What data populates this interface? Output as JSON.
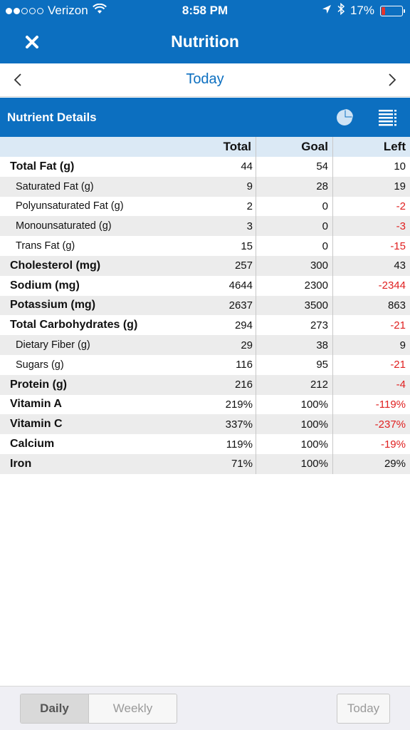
{
  "status_bar": {
    "carrier": "Verizon",
    "time": "8:58 PM",
    "battery": "17%",
    "battery_level": 0.17
  },
  "nav": {
    "title": "Nutrition"
  },
  "date_bar": {
    "label": "Today"
  },
  "section": {
    "title": "Nutrient Details"
  },
  "table": {
    "headers": {
      "total": "Total",
      "goal": "Goal",
      "left": "Left"
    },
    "rows": [
      {
        "name": "Total Fat (g)",
        "total": "44",
        "goal": "54",
        "left": "10"
      },
      {
        "name": "Saturated Fat (g)",
        "total": "9",
        "goal": "28",
        "left": "19"
      },
      {
        "name": "Polyunsaturated Fat (g)",
        "total": "2",
        "goal": "0",
        "left": "-2"
      },
      {
        "name": "Monounsaturated (g)",
        "total": "3",
        "goal": "0",
        "left": "-3"
      },
      {
        "name": "Trans Fat (g)",
        "total": "15",
        "goal": "0",
        "left": "-15"
      },
      {
        "name": "Cholesterol (mg)",
        "total": "257",
        "goal": "300",
        "left": "43"
      },
      {
        "name": "Sodium (mg)",
        "total": "4644",
        "goal": "2300",
        "left": "-2344"
      },
      {
        "name": "Potassium (mg)",
        "total": "2637",
        "goal": "3500",
        "left": "863"
      },
      {
        "name": "Total Carbohydrates (g)",
        "total": "294",
        "goal": "273",
        "left": "-21"
      },
      {
        "name": "Dietary Fiber (g)",
        "total": "29",
        "goal": "38",
        "left": "9"
      },
      {
        "name": "Sugars (g)",
        "total": "116",
        "goal": "95",
        "left": "-21"
      },
      {
        "name": "Protein (g)",
        "total": "216",
        "goal": "212",
        "left": "-4"
      },
      {
        "name": "Vitamin A",
        "total": "219%",
        "goal": "100%",
        "left": "-119%"
      },
      {
        "name": "Vitamin C",
        "total": "337%",
        "goal": "100%",
        "left": "-237%"
      },
      {
        "name": "Calcium",
        "total": "119%",
        "goal": "100%",
        "left": "-19%"
      },
      {
        "name": "Iron",
        "total": "71%",
        "goal": "100%",
        "left": "29%"
      }
    ]
  },
  "bottom_bar": {
    "daily_label": "Daily",
    "weekly_label": "Weekly",
    "today_label": "Today"
  },
  "colors": {
    "brand_blue": "#0c6fc0",
    "negative_red": "#e02020",
    "header_row": "#dbe9f5"
  }
}
